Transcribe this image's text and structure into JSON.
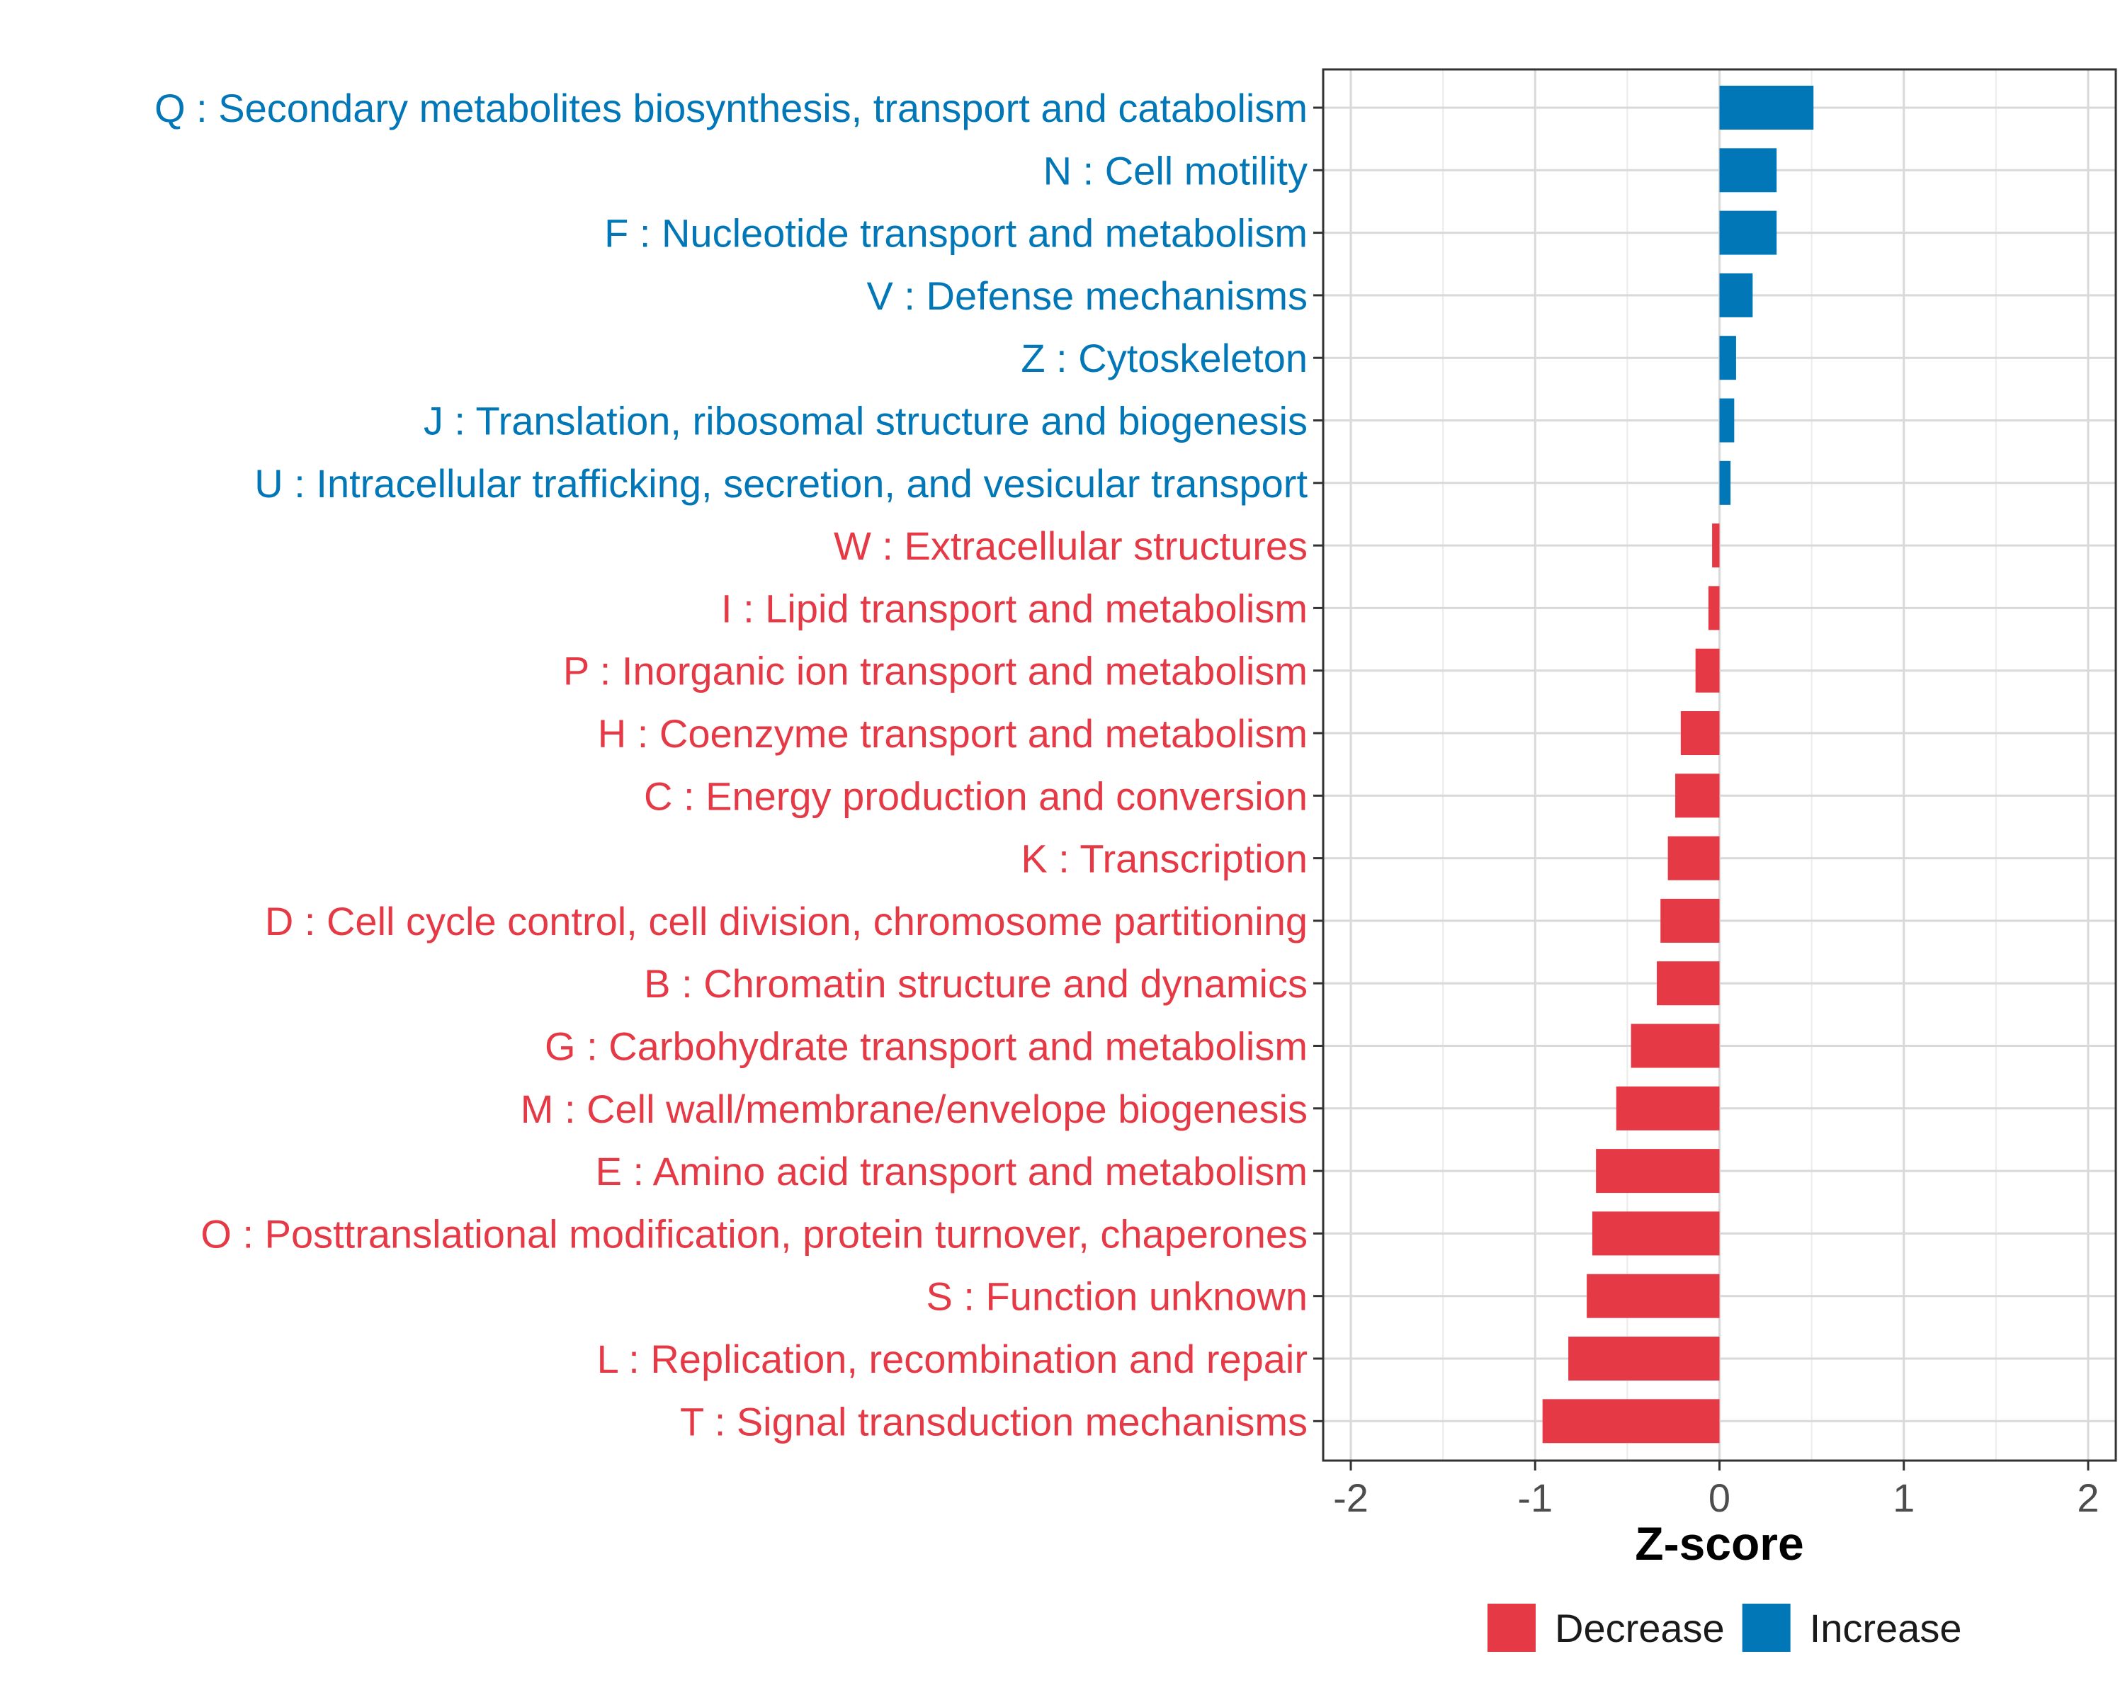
{
  "chart_data": {
    "type": "bar",
    "orientation": "horizontal",
    "title": "",
    "xlabel": "Z-score",
    "ylabel": "",
    "xlim": [
      -2.15,
      2.15
    ],
    "x_ticks": [
      -2,
      -1,
      0,
      1,
      2
    ],
    "x_tick_labels": [
      "-2",
      "-1",
      "0",
      "1",
      "2"
    ],
    "grid": true,
    "legend_position": "bottom",
    "colors": {
      "Decrease": "#e63946",
      "Increase": "#0177b7"
    },
    "categories": [
      "Q : Secondary metabolites biosynthesis, transport and catabolism",
      "N : Cell motility",
      "F : Nucleotide transport and metabolism",
      "V : Defense mechanisms",
      "Z : Cytoskeleton",
      "J : Translation, ribosomal structure and biogenesis",
      "U : Intracellular trafficking, secretion, and vesicular transport",
      "W : Extracellular structures",
      "I : Lipid transport and metabolism",
      "P : Inorganic ion transport and metabolism",
      "H : Coenzyme transport and metabolism",
      "C : Energy production and conversion",
      "K : Transcription",
      "D : Cell cycle control, cell division, chromosome partitioning",
      "B : Chromatin structure and dynamics",
      "G : Carbohydrate transport and metabolism",
      "M : Cell wall/membrane/envelope biogenesis",
      "E : Amino acid transport and metabolism",
      "O : Posttranslational modification, protein turnover, chaperones",
      "S : Function unknown",
      "L : Replication, recombination and repair",
      "T : Signal transduction mechanisms"
    ],
    "values": [
      0.51,
      0.31,
      0.31,
      0.18,
      0.09,
      0.08,
      0.06,
      -0.04,
      -0.06,
      -0.13,
      -0.21,
      -0.24,
      -0.28,
      -0.32,
      -0.34,
      -0.48,
      -0.56,
      -0.67,
      -0.69,
      -0.72,
      -0.82,
      -0.96
    ],
    "groups": [
      "Increase",
      "Increase",
      "Increase",
      "Increase",
      "Increase",
      "Increase",
      "Increase",
      "Decrease",
      "Decrease",
      "Decrease",
      "Decrease",
      "Decrease",
      "Decrease",
      "Decrease",
      "Decrease",
      "Decrease",
      "Decrease",
      "Decrease",
      "Decrease",
      "Decrease",
      "Decrease",
      "Decrease"
    ],
    "legend": [
      "Decrease",
      "Increase"
    ]
  }
}
